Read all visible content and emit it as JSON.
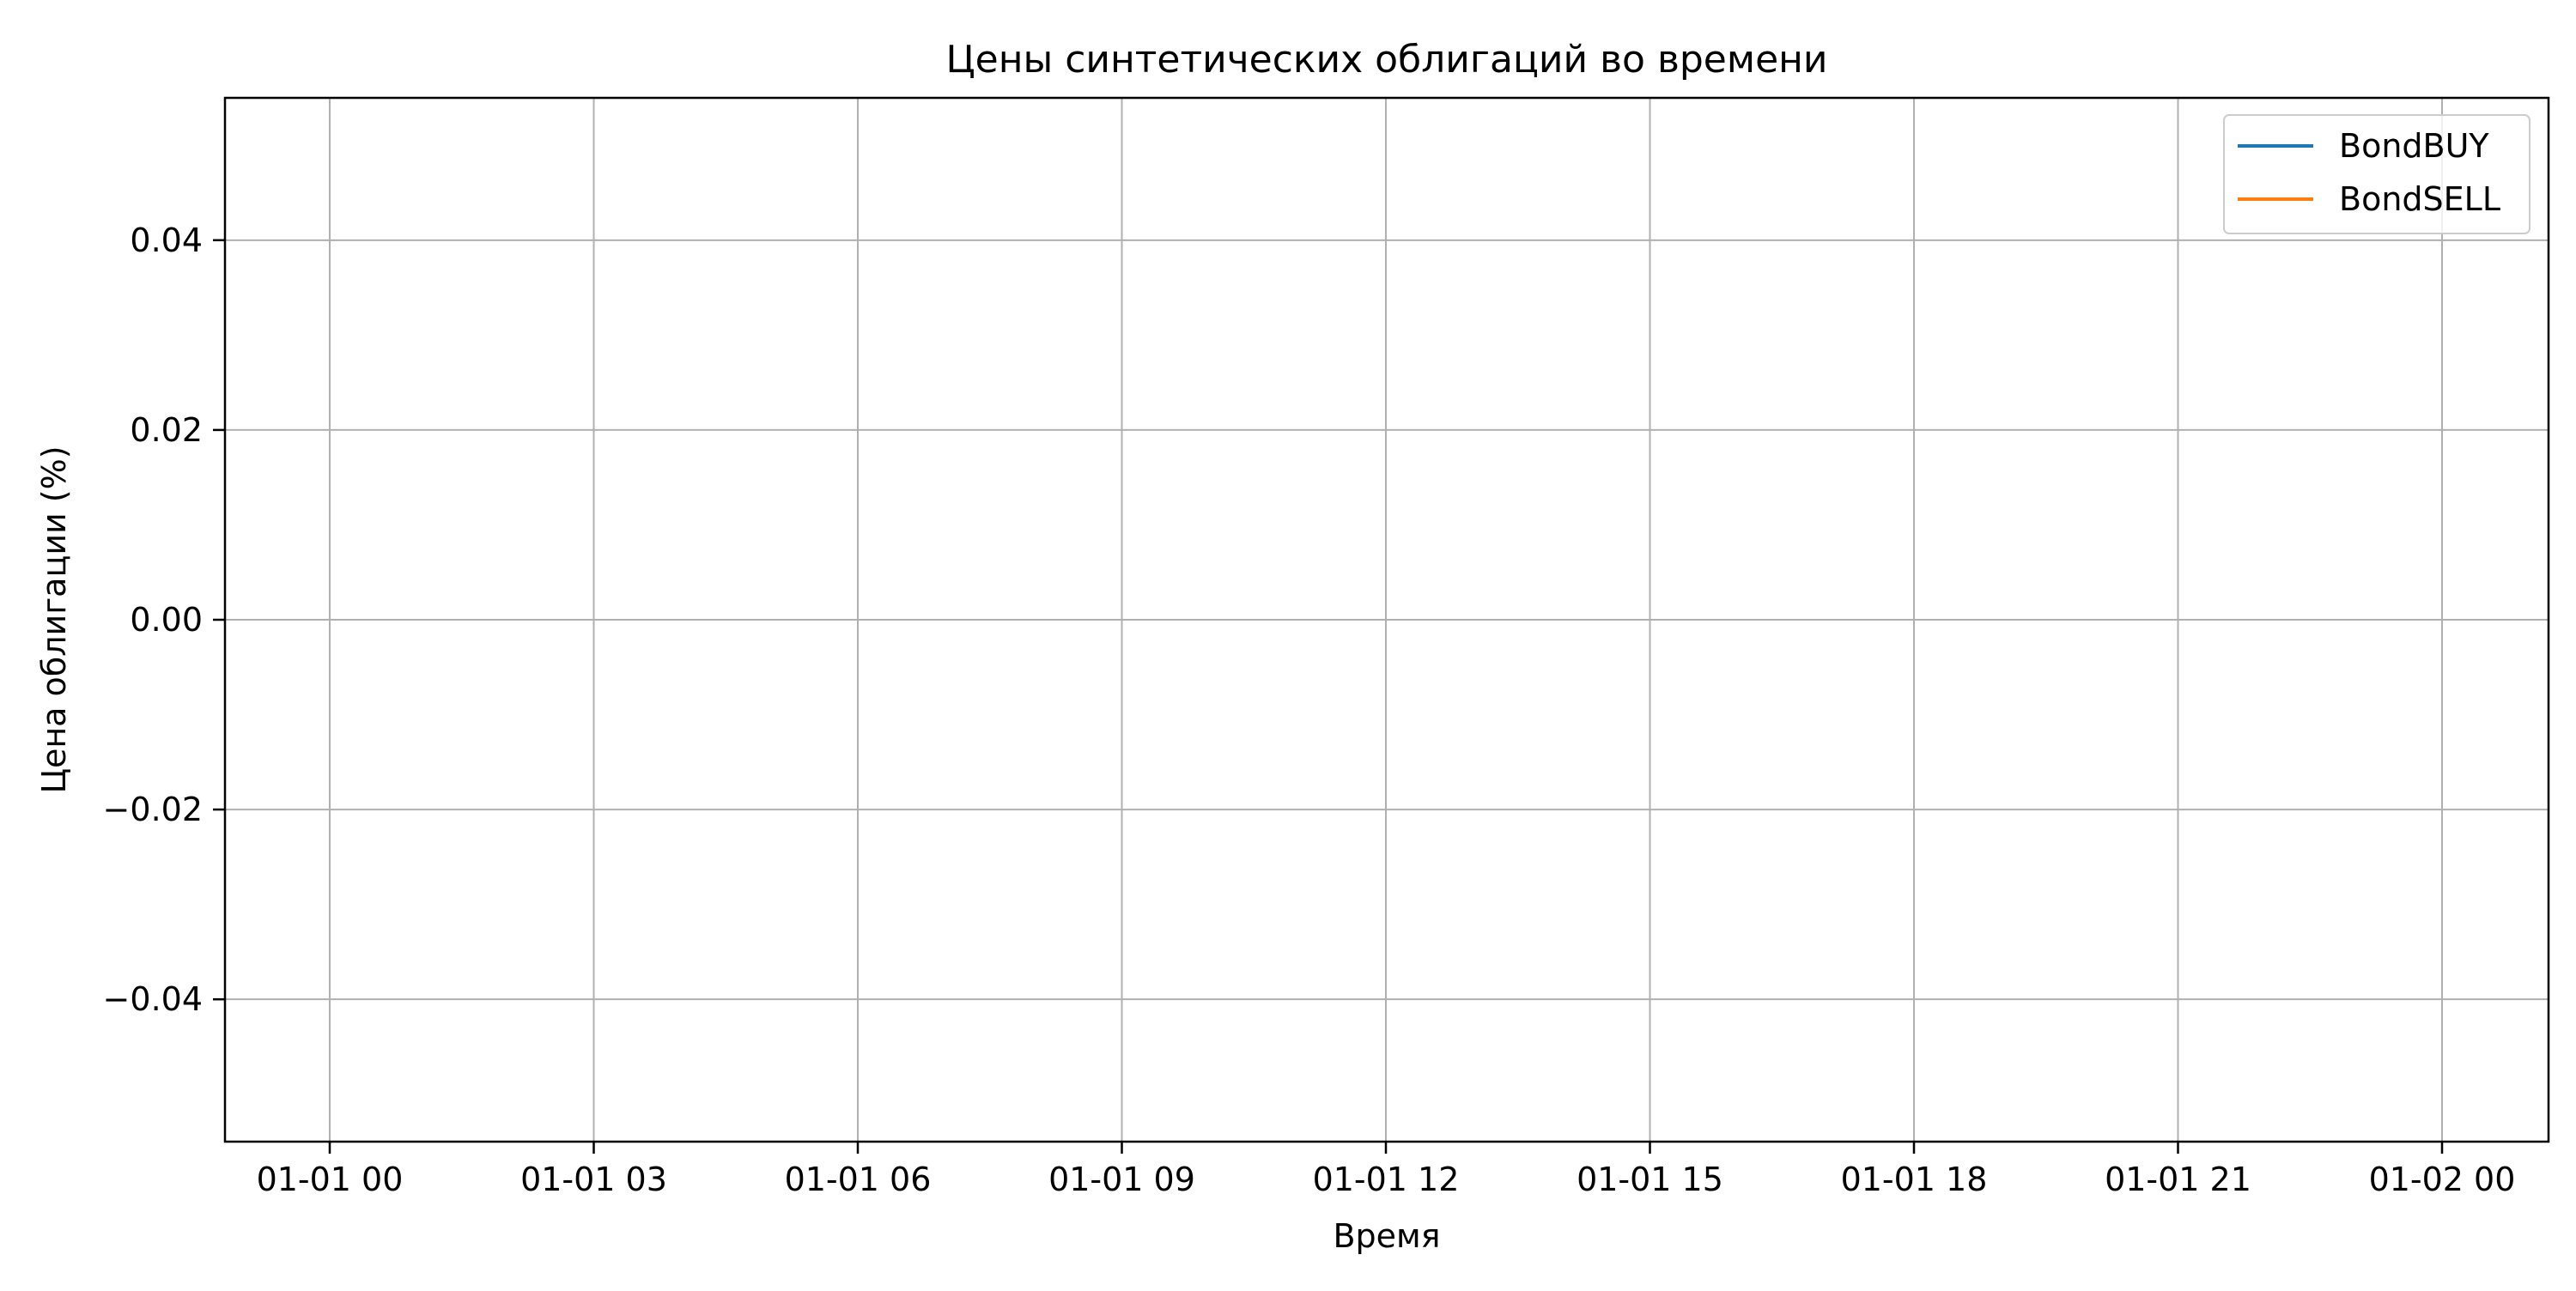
{
  "chart_data": {
    "type": "line",
    "title": "Цены синтетических облигаций во времени",
    "xlabel": "Время",
    "ylabel": "Цена облигации (%)",
    "x_ticks": [
      "01-01 00",
      "01-01 03",
      "01-01 06",
      "01-01 09",
      "01-01 12",
      "01-01 15",
      "01-01 18",
      "01-01 21",
      "01-02 00"
    ],
    "y_ticks": [
      "0.04",
      "0.02",
      "0.00",
      "−0.02",
      "−0.04"
    ],
    "y_tick_values": [
      0.04,
      0.02,
      0.0,
      -0.02,
      -0.04
    ],
    "ylim": [
      -0.055,
      0.055
    ],
    "grid": true,
    "legend_position": "top-right",
    "series": [
      {
        "name": "BondBUY",
        "color": "#1f77b4",
        "values": []
      },
      {
        "name": "BondSELL",
        "color": "#ff7f0e",
        "values": []
      }
    ]
  }
}
